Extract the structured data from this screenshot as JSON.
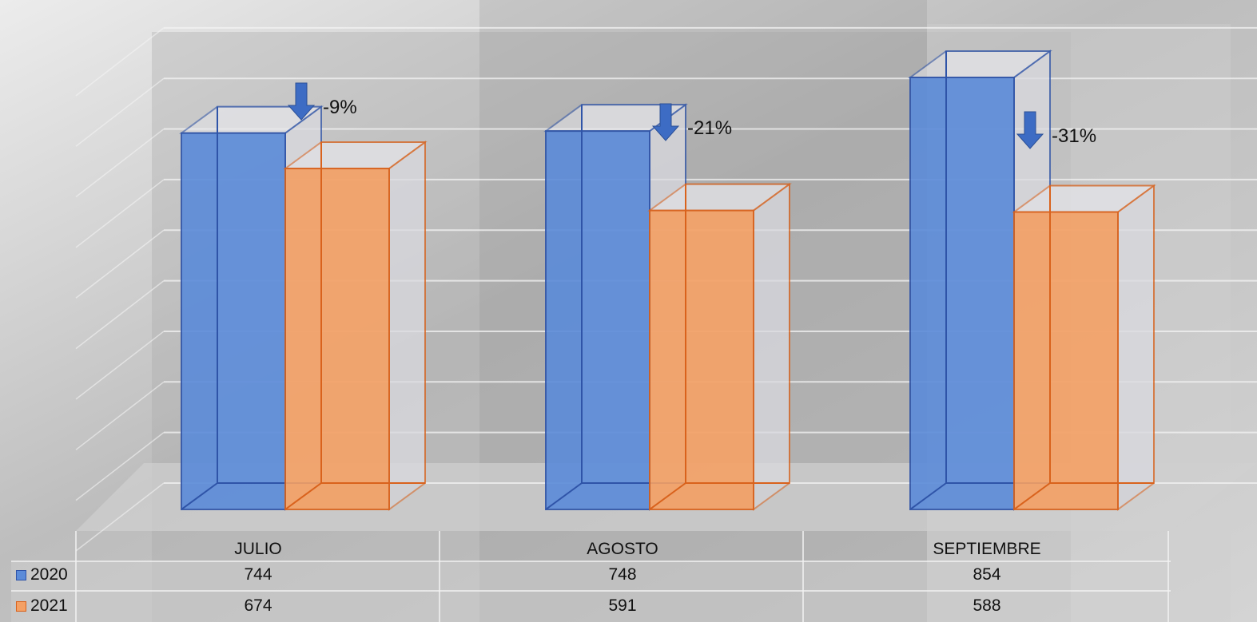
{
  "chart_data": {
    "type": "bar",
    "style": "3d-clustered-column",
    "categories": [
      "JULIO",
      "AGOSTO",
      "SEPTIEMBRE"
    ],
    "series": [
      {
        "name": "2020",
        "values": [
          744,
          748,
          854
        ],
        "color": "#5b8bd9",
        "edge": "#2f54a8"
      },
      {
        "name": "2021",
        "values": [
          674,
          591,
          588
        ],
        "color": "#f4a064",
        "edge": "#d9621c"
      }
    ],
    "annotations": [
      "-9%",
      "-21%",
      "-31%"
    ],
    "annotation_icon": "arrow-down-icon",
    "annotation_color": "#3d6cc4",
    "data_table": true,
    "legend": "data-table-left",
    "grid": true
  }
}
